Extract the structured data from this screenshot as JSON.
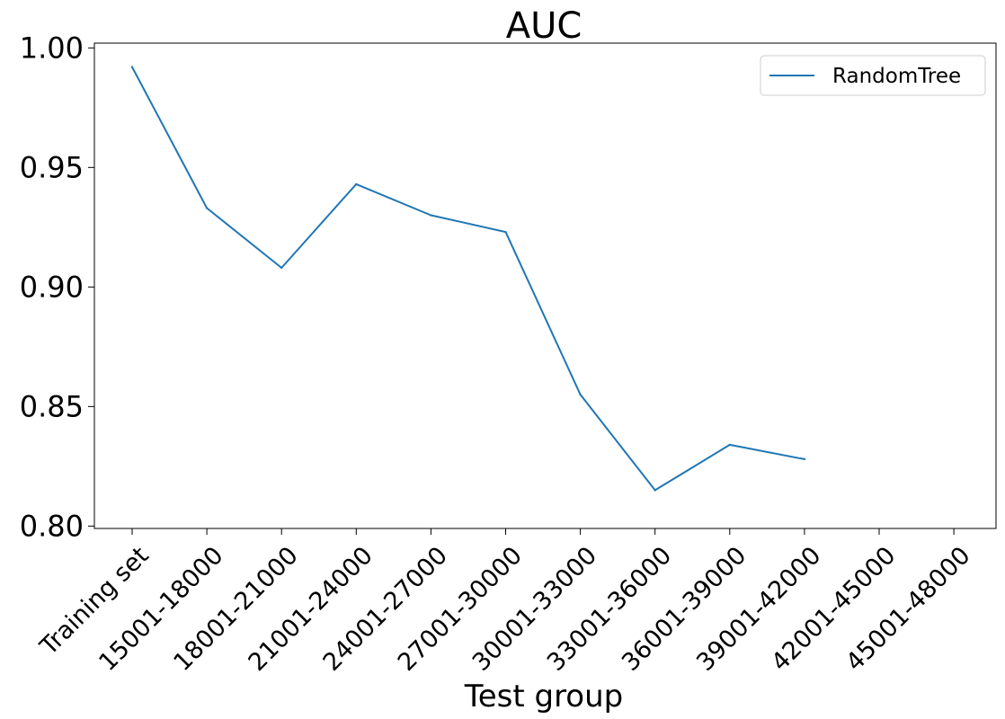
{
  "chart_data": {
    "type": "line",
    "title": "AUC",
    "xlabel": "Test group",
    "ylabel": "",
    "categories": [
      "Training set",
      "15001-18000",
      "18001-21000",
      "21001-24000",
      "24001-27000",
      "27001-30000",
      "30001-33000",
      "33001-36000",
      "36001-39000",
      "39001-42000",
      "42001-45000",
      "45001-48000"
    ],
    "series": [
      {
        "name": "RandomTree",
        "color": "#1f77b4",
        "values": [
          0.992,
          0.933,
          0.908,
          0.943,
          0.93,
          0.923,
          0.855,
          0.815,
          0.834,
          0.828,
          null,
          null
        ]
      }
    ],
    "yticks": [
      "0.80",
      "0.85",
      "0.90",
      "0.95",
      "1.00"
    ],
    "ylim": [
      0.799,
      1.002
    ],
    "grid": false,
    "legend_position": "top-right"
  }
}
